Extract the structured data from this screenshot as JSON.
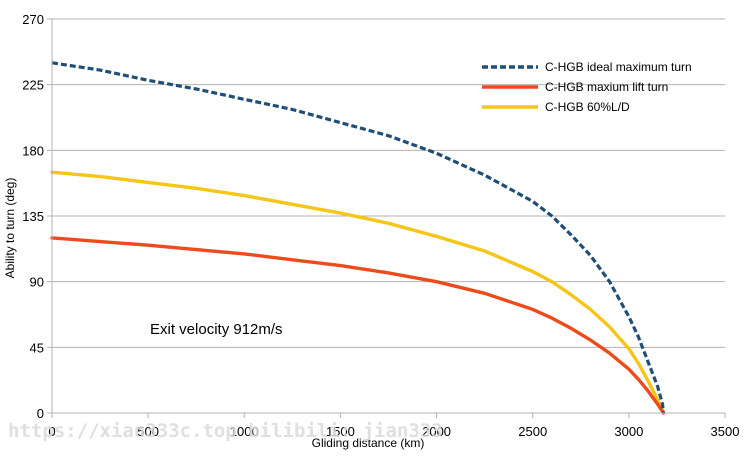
{
  "chart_data": {
    "type": "line",
    "title": "",
    "xlabel": "Gliding distance  (km)",
    "ylabel": "Ability to turn (deg)",
    "xlim": [
      0,
      3500
    ],
    "ylim": [
      0,
      270
    ],
    "xticks": [
      0,
      500,
      1000,
      1500,
      2000,
      2500,
      3000,
      3500
    ],
    "yticks": [
      0,
      45,
      90,
      135,
      180,
      225,
      270
    ],
    "x_tick_labels": [
      "0",
      "500",
      "1000",
      "1500",
      "2000",
      "2500",
      "3000",
      "3500"
    ],
    "y_tick_labels": [
      "0",
      "45",
      "90",
      "135",
      "180",
      "225",
      "270"
    ],
    "grid": "horizontal",
    "legend_position": "top-right",
    "annotation": "Exit velocity 912m/s",
    "watermark": "https://xian333c.top bilibili: jian333",
    "series": [
      {
        "name": "C-HGB ideal maximum turn",
        "color": "#1f4e79",
        "dash": "dashed",
        "x": [
          0,
          250,
          500,
          750,
          1000,
          1250,
          1500,
          1750,
          2000,
          2250,
          2500,
          2600,
          2700,
          2800,
          2900,
          3000,
          3050,
          3100,
          3150,
          3175,
          3180
        ],
        "y": [
          240,
          235,
          228,
          222,
          215,
          208,
          199,
          190,
          178,
          163,
          145,
          135,
          122,
          108,
          90,
          66,
          52,
          35,
          18,
          6,
          0
        ]
      },
      {
        "name": "C-HGB maxium lift turn",
        "color": "#ee4b1c",
        "dash": "solid",
        "x": [
          0,
          100,
          200,
          300,
          500,
          750,
          1000,
          1250,
          1500,
          1750,
          2000,
          2250,
          2500,
          2600,
          2700,
          2800,
          2900,
          3000,
          3050,
          3100,
          3150,
          3180
        ],
        "y": [
          120,
          119,
          118,
          117,
          115,
          112,
          109,
          105,
          101,
          96,
          90,
          82,
          71,
          65,
          58,
          50,
          41,
          30,
          23,
          15,
          6,
          0
        ]
      },
      {
        "name": "C-HGB 60%L/D",
        "color": "#f5c518",
        "dash": "solid",
        "x": [
          0,
          250,
          500,
          750,
          1000,
          1250,
          1500,
          1750,
          2000,
          2250,
          2500,
          2600,
          2700,
          2800,
          2900,
          3000,
          3050,
          3100,
          3150,
          3180
        ],
        "y": [
          165,
          162,
          158,
          154,
          149,
          143,
          137,
          130,
          121,
          111,
          97,
          90,
          81,
          71,
          59,
          44,
          34,
          22,
          9,
          0
        ]
      }
    ]
  }
}
